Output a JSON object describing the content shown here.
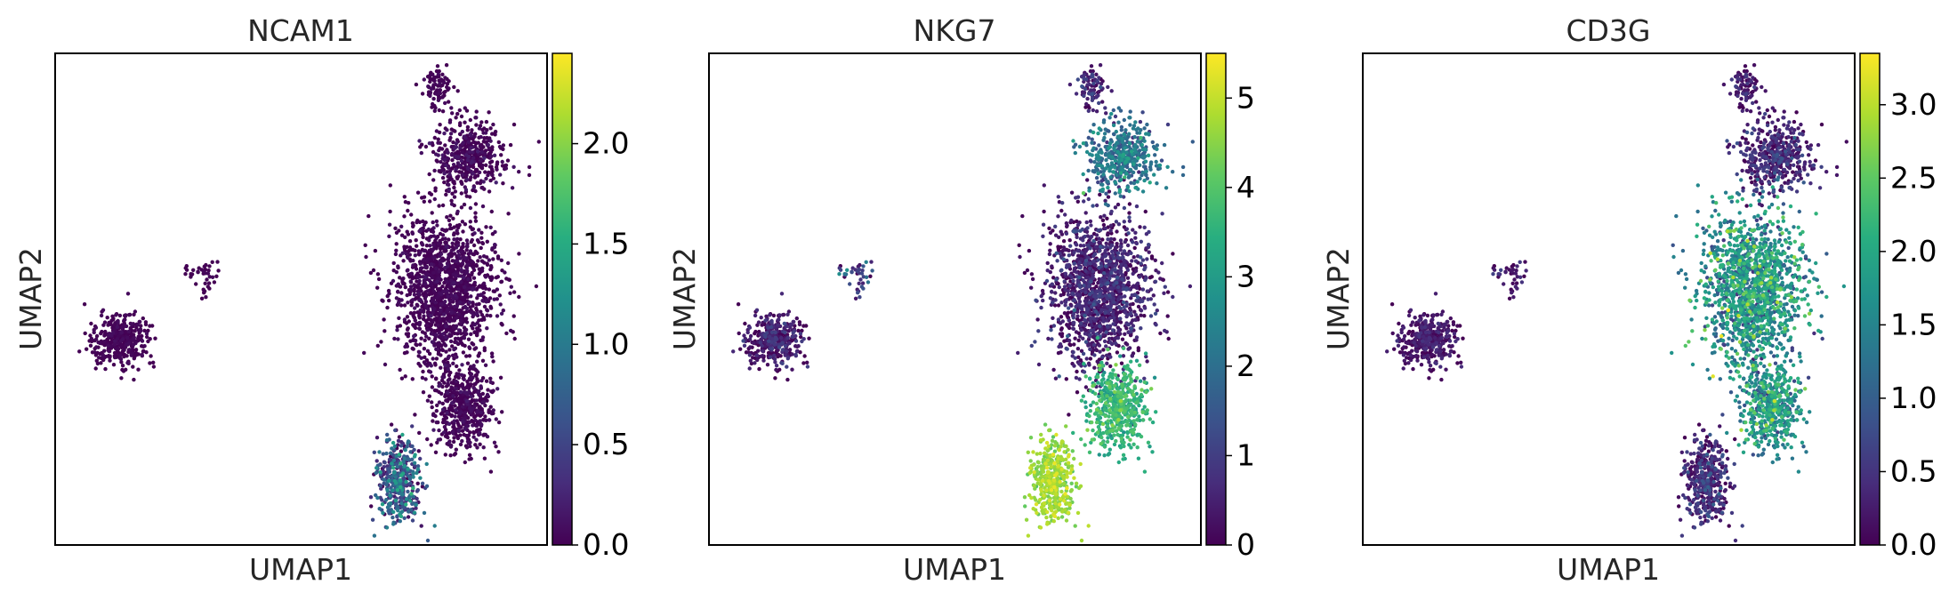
{
  "chart_data": [
    {
      "type": "scatter",
      "title": "NCAM1",
      "xlabel": "UMAP1",
      "ylabel": "UMAP2",
      "colormap": "viridis",
      "colorbar": {
        "range": [
          0,
          2.45
        ],
        "ticks": [
          "0.0",
          "0.5",
          "1.0",
          "1.5",
          "2.0"
        ]
      },
      "xlim": [
        0,
        10
      ],
      "ylim": [
        0,
        10
      ],
      "clusters": [
        {
          "cx": 1.3,
          "cy": 4.2,
          "sx": 0.55,
          "sy": 0.55,
          "n": 380,
          "value": 0.03,
          "spread": 0.06
        },
        {
          "cx": 3.0,
          "cy": 5.5,
          "sx": 0.35,
          "sy": 0.4,
          "n": 40,
          "value": 0.03,
          "spread": 0.05
        },
        {
          "cx": 7.9,
          "cy": 5.2,
          "sx": 1.05,
          "sy": 1.5,
          "n": 1400,
          "value": 0.04,
          "spread": 0.08
        },
        {
          "cx": 8.3,
          "cy": 2.8,
          "sx": 0.6,
          "sy": 0.9,
          "n": 500,
          "value": 0.05,
          "spread": 0.1
        },
        {
          "cx": 8.4,
          "cy": 7.9,
          "sx": 0.75,
          "sy": 0.75,
          "n": 450,
          "value": 0.06,
          "spread": 0.15
        },
        {
          "cx": 7.8,
          "cy": 9.3,
          "sx": 0.3,
          "sy": 0.5,
          "n": 90,
          "value": 0.03,
          "spread": 0.05
        },
        {
          "cx": 7.0,
          "cy": 1.3,
          "sx": 0.45,
          "sy": 0.8,
          "n": 420,
          "value": 0.55,
          "spread": 0.8
        }
      ]
    },
    {
      "type": "scatter",
      "title": "NKG7",
      "xlabel": "UMAP1",
      "ylabel": "UMAP2",
      "colormap": "viridis",
      "colorbar": {
        "range": [
          0,
          5.5
        ],
        "ticks": [
          "0",
          "1",
          "2",
          "3",
          "4",
          "5"
        ]
      },
      "xlim": [
        0,
        10
      ],
      "ylim": [
        0,
        10
      ],
      "clusters": [
        {
          "cx": 1.3,
          "cy": 4.2,
          "sx": 0.55,
          "sy": 0.55,
          "n": 380,
          "value": 0.25,
          "spread": 0.8
        },
        {
          "cx": 3.0,
          "cy": 5.5,
          "sx": 0.35,
          "sy": 0.4,
          "n": 40,
          "value": 1.0,
          "spread": 1.5
        },
        {
          "cx": 7.9,
          "cy": 5.2,
          "sx": 1.05,
          "sy": 1.5,
          "n": 1400,
          "value": 0.4,
          "spread": 0.8
        },
        {
          "cx": 8.3,
          "cy": 2.8,
          "sx": 0.6,
          "sy": 0.9,
          "n": 500,
          "value": 3.5,
          "spread": 0.8
        },
        {
          "cx": 8.4,
          "cy": 7.9,
          "sx": 0.75,
          "sy": 0.75,
          "n": 450,
          "value": 2.0,
          "spread": 1.2
        },
        {
          "cx": 7.8,
          "cy": 9.3,
          "sx": 0.3,
          "sy": 0.5,
          "n": 90,
          "value": 0.5,
          "spread": 0.8
        },
        {
          "cx": 7.0,
          "cy": 1.3,
          "sx": 0.45,
          "sy": 0.8,
          "n": 420,
          "value": 4.6,
          "spread": 0.6
        }
      ]
    },
    {
      "type": "scatter",
      "title": "CD3G",
      "xlabel": "UMAP1",
      "ylabel": "UMAP2",
      "colormap": "viridis",
      "colorbar": {
        "range": [
          0,
          3.35
        ],
        "ticks": [
          "0.0",
          "0.5",
          "1.0",
          "1.5",
          "2.0",
          "2.5",
          "3.0"
        ]
      },
      "xlim": [
        0,
        10
      ],
      "ylim": [
        0,
        10
      ],
      "clusters": [
        {
          "cx": 1.3,
          "cy": 4.2,
          "sx": 0.55,
          "sy": 0.55,
          "n": 380,
          "value": 0.15,
          "spread": 0.3
        },
        {
          "cx": 3.0,
          "cy": 5.5,
          "sx": 0.35,
          "sy": 0.4,
          "n": 40,
          "value": 0.2,
          "spread": 0.4
        },
        {
          "cx": 7.9,
          "cy": 5.2,
          "sx": 1.05,
          "sy": 1.5,
          "n": 1400,
          "value": 1.6,
          "spread": 1.0
        },
        {
          "cx": 8.3,
          "cy": 2.8,
          "sx": 0.6,
          "sy": 0.9,
          "n": 500,
          "value": 1.6,
          "spread": 1.0
        },
        {
          "cx": 8.4,
          "cy": 7.9,
          "sx": 0.75,
          "sy": 0.75,
          "n": 450,
          "value": 0.3,
          "spread": 0.6
        },
        {
          "cx": 7.8,
          "cy": 9.3,
          "sx": 0.3,
          "sy": 0.5,
          "n": 90,
          "value": 0.2,
          "spread": 0.4
        },
        {
          "cx": 7.0,
          "cy": 1.3,
          "sx": 0.45,
          "sy": 0.8,
          "n": 420,
          "value": 0.3,
          "spread": 0.6
        }
      ]
    }
  ]
}
